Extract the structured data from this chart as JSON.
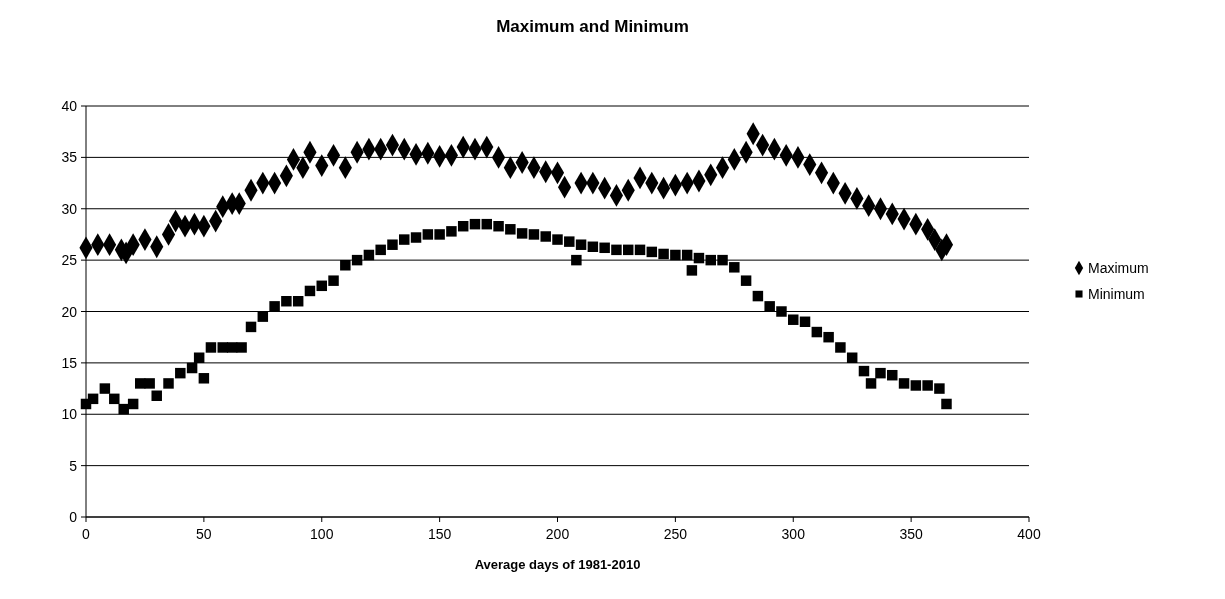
{
  "chart_data": {
    "type": "scatter",
    "title": "Maximum and Minimum",
    "xlabel": "Average days of 1981-2010",
    "xlim": [
      0,
      400
    ],
    "xticks": [
      0,
      50,
      100,
      150,
      200,
      250,
      300,
      350,
      400
    ],
    "ylim": [
      0,
      40
    ],
    "yticks": [
      0,
      5,
      10,
      15,
      20,
      25,
      30,
      35,
      40
    ],
    "grid": "y",
    "legend": "right",
    "series": [
      {
        "name": "Maximum",
        "color": "#000000",
        "marker": "diamond",
        "x": [
          0,
          5,
          10,
          15,
          17,
          20,
          25,
          30,
          35,
          38,
          42,
          46,
          50,
          55,
          58,
          62,
          65,
          70,
          75,
          80,
          85,
          88,
          92,
          95,
          100,
          105,
          110,
          115,
          120,
          125,
          130,
          135,
          140,
          145,
          150,
          155,
          160,
          165,
          170,
          175,
          180,
          185,
          190,
          195,
          200,
          203,
          210,
          215,
          220,
          225,
          230,
          235,
          240,
          245,
          250,
          255,
          260,
          265,
          270,
          275,
          280,
          283,
          287,
          292,
          297,
          302,
          307,
          312,
          317,
          322,
          327,
          332,
          337,
          342,
          347,
          352,
          357,
          360,
          363,
          365
        ],
        "values": [
          26.2,
          26.5,
          26.5,
          26,
          25.7,
          26.5,
          27,
          26.3,
          27.5,
          28.8,
          28.3,
          28.5,
          28.3,
          28.8,
          30.2,
          30.5,
          30.5,
          31.8,
          32.5,
          32.5,
          33.2,
          34.8,
          34,
          35.5,
          34.2,
          35.2,
          34,
          35.5,
          35.8,
          35.8,
          36.2,
          35.8,
          35.3,
          35.4,
          35.1,
          35.2,
          36,
          35.8,
          36,
          35,
          34,
          34.5,
          34,
          33.6,
          33.5,
          32.1,
          32.5,
          32.5,
          32,
          31.3,
          31.8,
          33,
          32.5,
          32,
          32.3,
          32.5,
          32.7,
          33.3,
          34,
          34.8,
          35.5,
          37.3,
          36.2,
          35.8,
          35.2,
          35,
          34.3,
          33.5,
          32.5,
          31.5,
          31,
          30.3,
          30,
          29.5,
          29,
          28.5,
          28,
          27,
          26,
          26.5
        ]
      },
      {
        "name": "Minimum",
        "color": "#000000",
        "marker": "square",
        "x": [
          0,
          3,
          8,
          12,
          16,
          20,
          23,
          27,
          30,
          35,
          40,
          45,
          48,
          50,
          53,
          58,
          62,
          66,
          70,
          75,
          80,
          85,
          90,
          95,
          100,
          105,
          110,
          115,
          120,
          125,
          130,
          135,
          140,
          145,
          150,
          155,
          160,
          165,
          170,
          175,
          180,
          185,
          190,
          195,
          200,
          205,
          208,
          210,
          215,
          220,
          225,
          230,
          235,
          240,
          245,
          250,
          255,
          257,
          260,
          265,
          270,
          275,
          280,
          285,
          290,
          295,
          300,
          305,
          310,
          315,
          320,
          325,
          330,
          333,
          337,
          342,
          347,
          352,
          357,
          362,
          365
        ],
        "values": [
          11,
          11.5,
          12.5,
          11.5,
          10.5,
          11,
          13,
          13,
          11.8,
          13,
          14,
          14.5,
          15.5,
          13.5,
          16.5,
          16.5,
          16.5,
          16.5,
          18.5,
          19.5,
          20.5,
          21,
          21,
          22,
          22.5,
          23,
          24.5,
          25,
          25.5,
          26,
          26.5,
          27,
          27.2,
          27.5,
          27.5,
          27.8,
          28.3,
          28.5,
          28.5,
          28.3,
          28,
          27.6,
          27.5,
          27.3,
          27,
          26.8,
          25,
          26.5,
          26.3,
          26.2,
          26,
          26,
          26,
          25.8,
          25.6,
          25.5,
          25.5,
          24,
          25.2,
          25,
          25,
          24.3,
          23,
          21.5,
          20.5,
          20,
          19.2,
          19,
          18,
          17.5,
          16.5,
          15.5,
          14.2,
          13,
          14,
          13.8,
          13,
          12.8,
          12.8,
          12.5,
          11
        ]
      }
    ]
  }
}
